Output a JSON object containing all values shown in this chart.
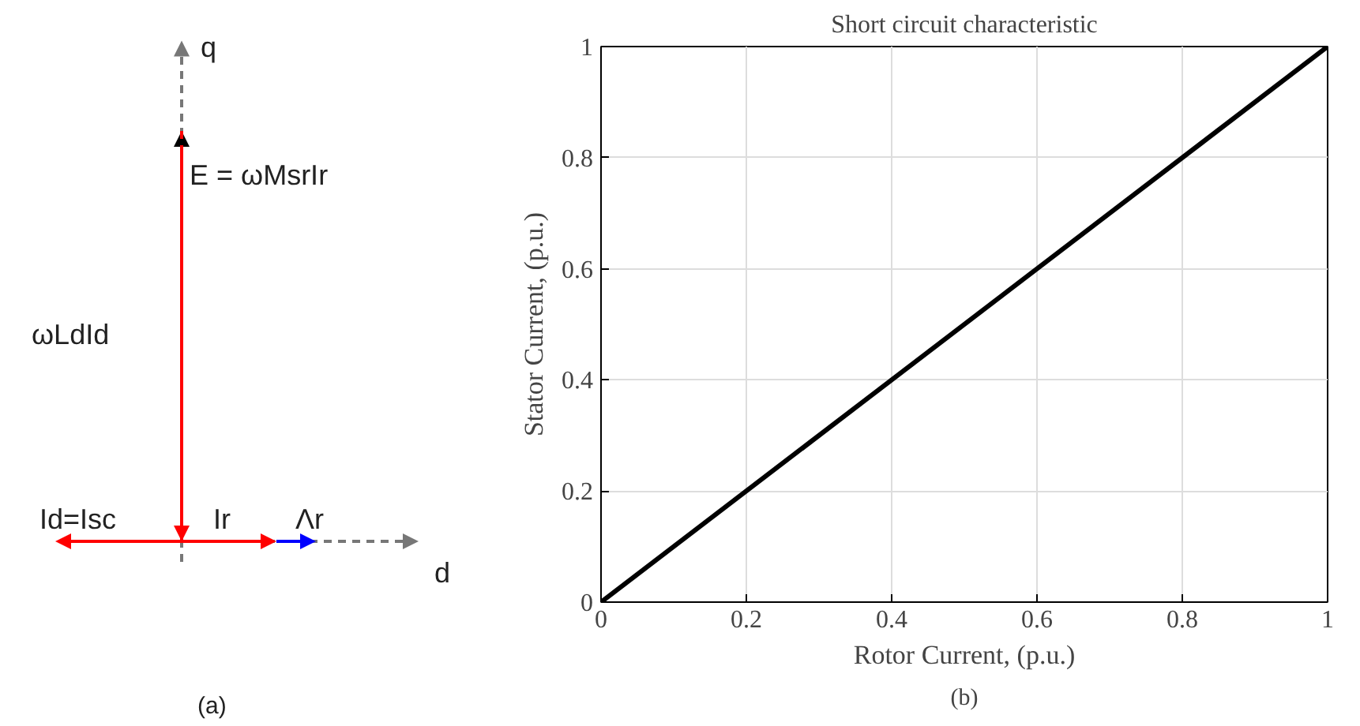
{
  "chart_data": [
    {
      "type": "other",
      "annotations": [
        "q",
        "d",
        "E = ωMsrIr",
        "ωLdId",
        "Id=Isc",
        "Ir",
        "Λr",
        "(a)"
      ]
    },
    {
      "type": "line",
      "title": "Short circuit characteristic",
      "xlabel": "Rotor Current, (p.u.)",
      "ylabel": "Stator Current, (p.u.)",
      "annotations": [
        "(b)"
      ],
      "x": [
        0,
        1
      ],
      "series": [
        {
          "color": "#000000",
          "values": [
            0,
            1
          ]
        }
      ],
      "xlim": [
        0,
        1
      ],
      "ylim": [
        0,
        1
      ],
      "xticks": [
        0,
        0.2,
        0.4,
        0.6,
        0.8,
        1
      ],
      "yticks": [
        0,
        0.2,
        0.4,
        0.6,
        0.8,
        1
      ],
      "grid": true,
      "marker": "none",
      "line_style": "solid"
    }
  ]
}
